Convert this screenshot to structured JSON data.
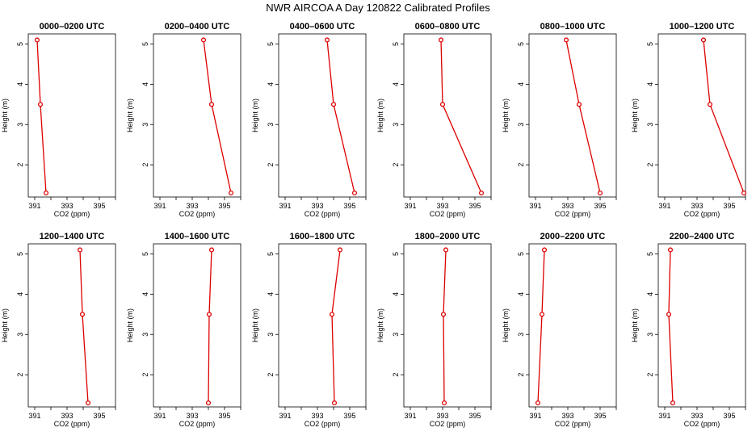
{
  "title": "NWR AIRCOA A  Day 120822  Calibrated Profiles",
  "colors": {
    "series": "#dd0000",
    "axis": "#000000"
  },
  "chart_data": [
    {
      "type": "line",
      "title": "0000–0200 UTC",
      "xlabel": "CO2 (ppm)",
      "ylabel": "Height (m)",
      "x_ticks": [
        391,
        393,
        395
      ],
      "y_ticks": [
        2,
        3,
        4,
        5
      ],
      "xlim": [
        390.6,
        396.0
      ],
      "ylim": [
        1.2,
        5.25
      ],
      "points": [
        {
          "x": 391.15,
          "y": 5.1
        },
        {
          "x": 391.35,
          "y": 3.5
        },
        {
          "x": 391.7,
          "y": 1.3
        }
      ]
    },
    {
      "type": "line",
      "title": "0200–0400 UTC",
      "xlabel": "CO2 (ppm)",
      "ylabel": "Height (m)",
      "x_ticks": [
        391,
        393,
        395
      ],
      "y_ticks": [
        2,
        3,
        4,
        5
      ],
      "xlim": [
        390.6,
        396.0
      ],
      "ylim": [
        1.2,
        5.25
      ],
      "points": [
        {
          "x": 393.7,
          "y": 5.1
        },
        {
          "x": 394.2,
          "y": 3.5
        },
        {
          "x": 395.4,
          "y": 1.3
        }
      ]
    },
    {
      "type": "line",
      "title": "0400–0600 UTC",
      "xlabel": "CO2 (ppm)",
      "ylabel": "Height (m)",
      "x_ticks": [
        391,
        393,
        395
      ],
      "y_ticks": [
        2,
        3,
        4,
        5
      ],
      "xlim": [
        390.6,
        396.0
      ],
      "ylim": [
        1.2,
        5.25
      ],
      "points": [
        {
          "x": 393.6,
          "y": 5.1
        },
        {
          "x": 394.0,
          "y": 3.5
        },
        {
          "x": 395.3,
          "y": 1.3
        }
      ]
    },
    {
      "type": "line",
      "title": "0600–0800 UTC",
      "xlabel": "CO2 (ppm)",
      "ylabel": "Height (m)",
      "x_ticks": [
        391,
        393,
        395
      ],
      "y_ticks": [
        2,
        3,
        4,
        5
      ],
      "xlim": [
        390.6,
        396.0
      ],
      "ylim": [
        1.2,
        5.25
      ],
      "points": [
        {
          "x": 392.9,
          "y": 5.1
        },
        {
          "x": 393.0,
          "y": 3.5
        },
        {
          "x": 395.4,
          "y": 1.3
        }
      ]
    },
    {
      "type": "line",
      "title": "0800–1000 UTC",
      "xlabel": "CO2 (ppm)",
      "ylabel": "Height (m)",
      "x_ticks": [
        391,
        393,
        395
      ],
      "y_ticks": [
        2,
        3,
        4,
        5
      ],
      "xlim": [
        390.6,
        396.0
      ],
      "ylim": [
        1.2,
        5.25
      ],
      "points": [
        {
          "x": 392.9,
          "y": 5.1
        },
        {
          "x": 393.7,
          "y": 3.5
        },
        {
          "x": 395.0,
          "y": 1.3
        }
      ]
    },
    {
      "type": "line",
      "title": "1000–1200 UTC",
      "xlabel": "CO2 (ppm)",
      "ylabel": "Height (m)",
      "x_ticks": [
        391,
        393,
        395
      ],
      "y_ticks": [
        2,
        3,
        4,
        5
      ],
      "xlim": [
        390.6,
        396.0
      ],
      "ylim": [
        1.2,
        5.25
      ],
      "points": [
        {
          "x": 393.4,
          "y": 5.1
        },
        {
          "x": 393.8,
          "y": 3.5
        },
        {
          "x": 395.9,
          "y": 1.3
        }
      ]
    },
    {
      "type": "line",
      "title": "1200–1400 UTC",
      "xlabel": "CO2 (ppm)",
      "ylabel": "Height (m)",
      "x_ticks": [
        391,
        393,
        395
      ],
      "y_ticks": [
        2,
        3,
        4,
        5
      ],
      "xlim": [
        390.6,
        396.0
      ],
      "ylim": [
        1.2,
        5.25
      ],
      "points": [
        {
          "x": 393.8,
          "y": 5.1
        },
        {
          "x": 393.95,
          "y": 3.5
        },
        {
          "x": 394.3,
          "y": 1.3
        }
      ]
    },
    {
      "type": "line",
      "title": "1400–1600 UTC",
      "xlabel": "CO2 (ppm)",
      "ylabel": "Height (m)",
      "x_ticks": [
        391,
        393,
        395
      ],
      "y_ticks": [
        2,
        3,
        4,
        5
      ],
      "xlim": [
        390.6,
        396.0
      ],
      "ylim": [
        1.2,
        5.25
      ],
      "points": [
        {
          "x": 394.2,
          "y": 5.1
        },
        {
          "x": 394.05,
          "y": 3.5
        },
        {
          "x": 394.0,
          "y": 1.3
        }
      ]
    },
    {
      "type": "line",
      "title": "1600–1800 UTC",
      "xlabel": "CO2 (ppm)",
      "ylabel": "Height (m)",
      "x_ticks": [
        391,
        393,
        395
      ],
      "y_ticks": [
        2,
        3,
        4,
        5
      ],
      "xlim": [
        390.6,
        396.0
      ],
      "ylim": [
        1.2,
        5.25
      ],
      "points": [
        {
          "x": 394.4,
          "y": 5.1
        },
        {
          "x": 393.9,
          "y": 3.5
        },
        {
          "x": 394.05,
          "y": 1.3
        }
      ]
    },
    {
      "type": "line",
      "title": "1800–2000 UTC",
      "xlabel": "CO2 (ppm)",
      "ylabel": "Height (m)",
      "x_ticks": [
        391,
        393,
        395
      ],
      "y_ticks": [
        2,
        3,
        4,
        5
      ],
      "xlim": [
        390.6,
        396.0
      ],
      "ylim": [
        1.2,
        5.25
      ],
      "points": [
        {
          "x": 393.2,
          "y": 5.1
        },
        {
          "x": 393.05,
          "y": 3.5
        },
        {
          "x": 393.1,
          "y": 1.3
        }
      ]
    },
    {
      "type": "line",
      "title": "2000–2200 UTC",
      "xlabel": "CO2 (ppm)",
      "ylabel": "Height (m)",
      "x_ticks": [
        391,
        393,
        395
      ],
      "y_ticks": [
        2,
        3,
        4,
        5
      ],
      "xlim": [
        390.6,
        396.0
      ],
      "ylim": [
        1.2,
        5.25
      ],
      "points": [
        {
          "x": 391.55,
          "y": 5.1
        },
        {
          "x": 391.4,
          "y": 3.5
        },
        {
          "x": 391.15,
          "y": 1.3
        }
      ]
    },
    {
      "type": "line",
      "title": "2200–2400 UTC",
      "xlabel": "CO2 (ppm)",
      "ylabel": "Height (m)",
      "x_ticks": [
        391,
        393,
        395
      ],
      "y_ticks": [
        2,
        3,
        4,
        5
      ],
      "xlim": [
        390.6,
        396.0
      ],
      "ylim": [
        1.2,
        5.25
      ],
      "points": [
        {
          "x": 391.35,
          "y": 5.1
        },
        {
          "x": 391.25,
          "y": 3.5
        },
        {
          "x": 391.5,
          "y": 1.3
        }
      ]
    }
  ]
}
